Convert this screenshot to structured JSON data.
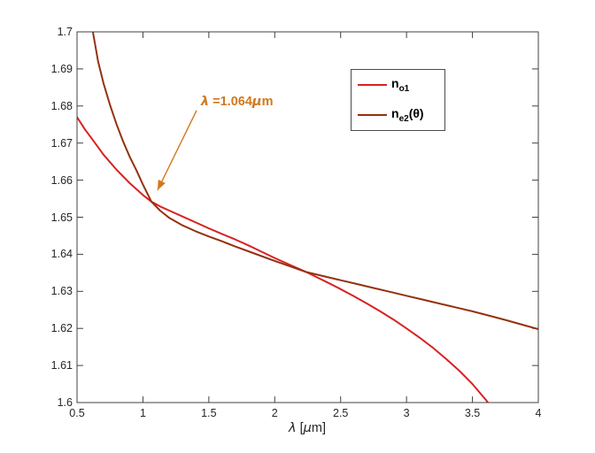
{
  "figure": {
    "background": "#ffffff"
  },
  "colors": {
    "curve_n_o1": "#d92121",
    "curve_n_e2": "#96300f",
    "annotation": "#d2781e",
    "axis": "#404040",
    "tick_text": "#262626"
  },
  "axes": {
    "xlabel": {
      "lambda": "λ",
      "open": " [",
      "mu": "μ",
      "close": "m]"
    },
    "x_ticks": [
      {
        "label": "0.5",
        "value": 0.5
      },
      {
        "label": "1",
        "value": 1
      },
      {
        "label": "1.5",
        "value": 1.5
      },
      {
        "label": "2",
        "value": 2
      },
      {
        "label": "2.5",
        "value": 2.5
      },
      {
        "label": "3",
        "value": 3
      },
      {
        "label": "3.5",
        "value": 3.5
      },
      {
        "label": "4",
        "value": 4
      }
    ],
    "y_ticks": [
      {
        "label": "1.6",
        "value": 1.6
      },
      {
        "label": "1.61",
        "value": 1.61
      },
      {
        "label": "1.62",
        "value": 1.62
      },
      {
        "label": "1.63",
        "value": 1.63
      },
      {
        "label": "1.64",
        "value": 1.64
      },
      {
        "label": "1.65",
        "value": 1.65
      },
      {
        "label": "1.66",
        "value": 1.66
      },
      {
        "label": "1.67",
        "value": 1.67
      },
      {
        "label": "1.68",
        "value": 1.68
      },
      {
        "label": "1.69",
        "value": 1.69
      },
      {
        "label": "1.7",
        "value": 1.7
      }
    ]
  },
  "legend": {
    "entries": [
      {
        "main": "n",
        "sub": "o1",
        "suffix": ""
      },
      {
        "main": "n",
        "sub": "e2",
        "suffix": "(θ)"
      }
    ]
  },
  "annotation": {
    "lambda": "λ",
    "eq": " =1.064",
    "mu": "μ",
    "unit": "m"
  },
  "chart_data": {
    "type": "line",
    "title": "",
    "xlabel": "λ [μm]",
    "ylabel": "",
    "xlim": [
      0.5,
      4
    ],
    "ylim": [
      1.6,
      1.7
    ],
    "grid": false,
    "legend_position": "inside upper middle-right",
    "annotation": {
      "text": "λ =1.064μm",
      "text_pos": [
        1.44,
        1.683
      ],
      "arrow_from": [
        1.407,
        1.6788
      ],
      "arrow_to": [
        1.111,
        1.6573
      ]
    },
    "intersections": [
      {
        "x": 1.064,
        "y": 1.6542
      },
      {
        "x": 2.24,
        "y": 1.6352
      }
    ],
    "series": [
      {
        "name": "n_o1",
        "color": "#d92121",
        "points": [
          [
            0.5,
            1.677
          ],
          [
            0.56,
            1.6737
          ],
          [
            0.62,
            1.6708
          ],
          [
            0.7,
            1.6669
          ],
          [
            0.8,
            1.6628
          ],
          [
            0.9,
            1.6592
          ],
          [
            1.0,
            1.656
          ],
          [
            1.064,
            1.6542
          ],
          [
            1.13,
            1.6529
          ],
          [
            1.2,
            1.6518
          ],
          [
            1.3,
            1.6502
          ],
          [
            1.4,
            1.6486
          ],
          [
            1.5,
            1.647
          ],
          [
            1.6,
            1.6455
          ],
          [
            1.7,
            1.644
          ],
          [
            1.8,
            1.6424
          ],
          [
            1.9,
            1.6407
          ],
          [
            2.0,
            1.639
          ],
          [
            2.12,
            1.6371
          ],
          [
            2.24,
            1.6352
          ],
          [
            2.32,
            1.6338
          ],
          [
            2.4,
            1.6324
          ],
          [
            2.5,
            1.6306
          ],
          [
            2.6,
            1.6287
          ],
          [
            2.7,
            1.6267
          ],
          [
            2.8,
            1.6246
          ],
          [
            2.9,
            1.6224
          ],
          [
            3.0,
            1.62
          ],
          [
            3.1,
            1.6175
          ],
          [
            3.2,
            1.6148
          ],
          [
            3.3,
            1.6118
          ],
          [
            3.4,
            1.6086
          ],
          [
            3.5,
            1.605
          ],
          [
            3.6,
            1.6008
          ],
          [
            3.64,
            1.599
          ]
        ]
      },
      {
        "name": "n_e2(θ)",
        "color": "#96300f",
        "points": [
          [
            0.55,
            1.7198
          ],
          [
            0.58,
            1.7108
          ],
          [
            0.62,
            1.7
          ],
          [
            0.66,
            1.692
          ],
          [
            0.7,
            1.6862
          ],
          [
            0.75,
            1.6803
          ],
          [
            0.8,
            1.675
          ],
          [
            0.85,
            1.6704
          ],
          [
            0.9,
            1.6663
          ],
          [
            0.95,
            1.6627
          ],
          [
            1.0,
            1.6588
          ],
          [
            1.064,
            1.6542
          ],
          [
            1.13,
            1.6518
          ],
          [
            1.2,
            1.6498
          ],
          [
            1.3,
            1.6478
          ],
          [
            1.4,
            1.6462
          ],
          [
            1.5,
            1.6448
          ],
          [
            1.6,
            1.6435
          ],
          [
            1.7,
            1.6421
          ],
          [
            1.8,
            1.6408
          ],
          [
            1.9,
            1.6395
          ],
          [
            2.0,
            1.6382
          ],
          [
            2.12,
            1.6367
          ],
          [
            2.24,
            1.6352
          ],
          [
            2.37,
            1.6341
          ],
          [
            2.5,
            1.633
          ],
          [
            2.62,
            1.632
          ],
          [
            2.75,
            1.6309
          ],
          [
            2.87,
            1.6299
          ],
          [
            3.0,
            1.6288
          ],
          [
            3.12,
            1.6278
          ],
          [
            3.25,
            1.6267
          ],
          [
            3.37,
            1.6257
          ],
          [
            3.5,
            1.6246
          ],
          [
            3.62,
            1.6235
          ],
          [
            3.75,
            1.6223
          ],
          [
            3.87,
            1.6211
          ],
          [
            4.0,
            1.6198
          ]
        ]
      }
    ]
  }
}
